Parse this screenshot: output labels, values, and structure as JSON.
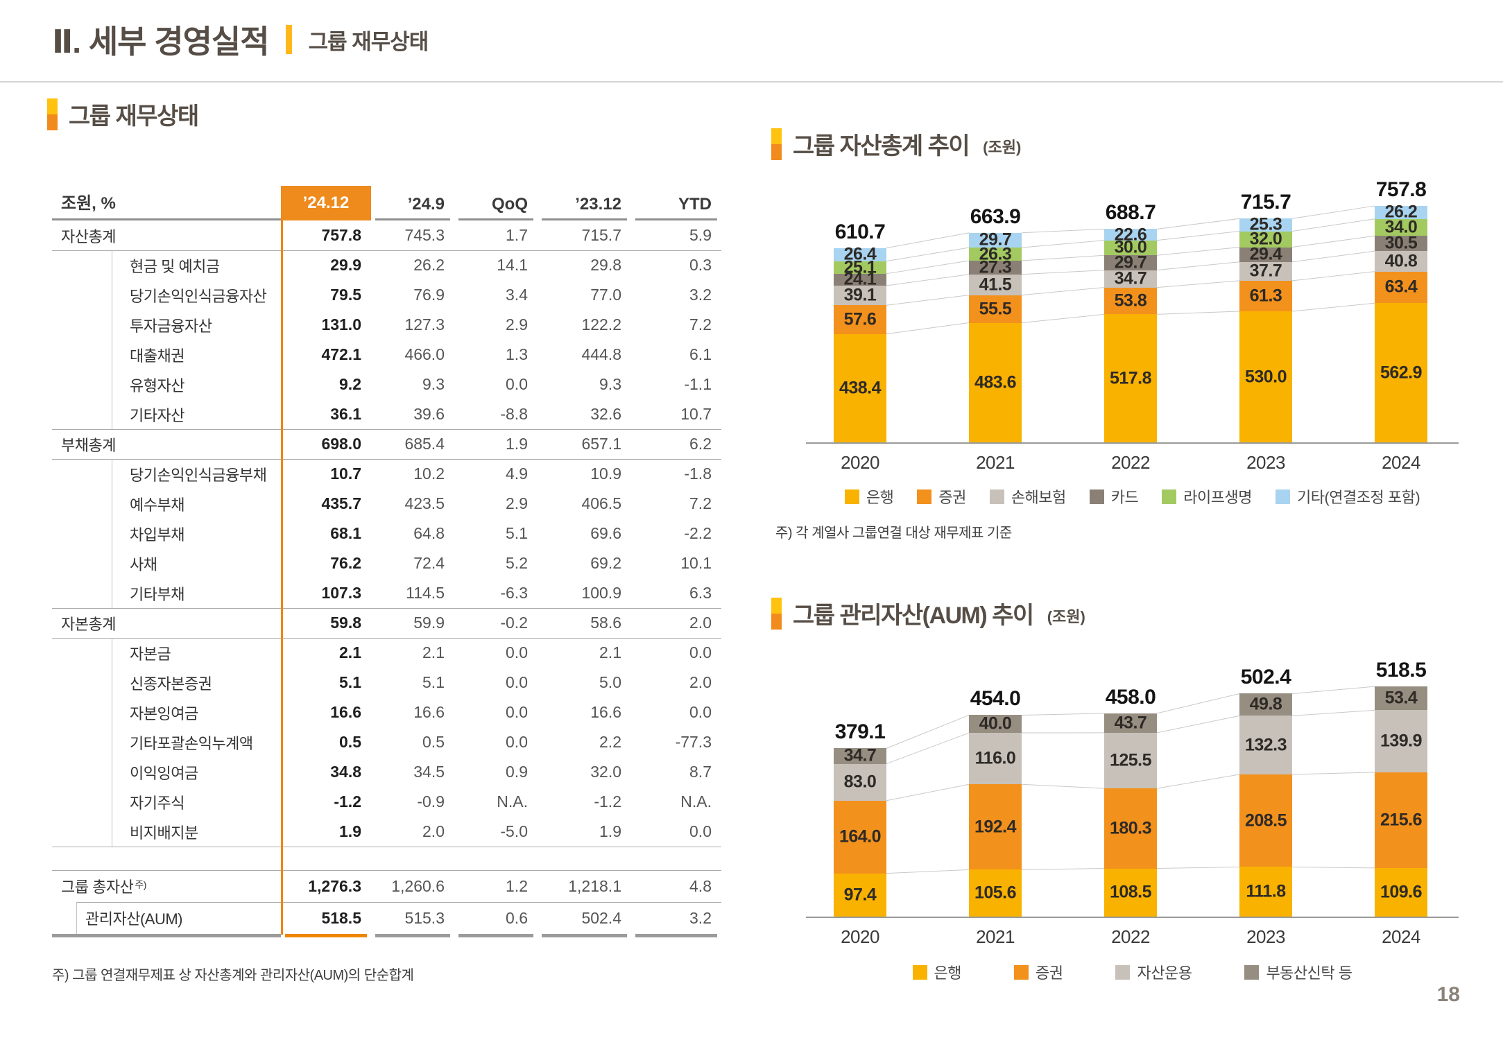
{
  "header": {
    "title": "Ⅱ. 세부 경영실적",
    "subtitle": "그룹 재무상태"
  },
  "page_number": "18",
  "colors": {
    "accent_yellow": "#FFC20E",
    "accent_orange": "#F28B1D",
    "header_cell_orange": "#EF8A1D",
    "table_accent_line": "#EE8600",
    "bank_yellow": "#F9B200",
    "securities_orange": "#F3911D",
    "insurance_gray": "#C7C1BA",
    "card_gray": "#8A8076",
    "life_green": "#A3CA61",
    "etc_blue": "#A8D4F1",
    "trust_gray": "#978E82"
  },
  "table": {
    "section_title": "그룹 재무상태",
    "unit_label": "조원, %",
    "columns": [
      "’24.12",
      "’24.9",
      "QoQ",
      "’23.12",
      "YTD"
    ],
    "rows": [
      {
        "label": "자산총계",
        "type": "total",
        "line_above": "none",
        "values": [
          "757.8",
          "745.3",
          "1.7",
          "715.7",
          "5.9"
        ]
      },
      {
        "label": "현금 및 예치금",
        "type": "sub",
        "line_above": "full",
        "values": [
          "29.9",
          "26.2",
          "14.1",
          "29.8",
          "0.3"
        ]
      },
      {
        "label": "당기손익인식금융자산",
        "type": "sub",
        "line_above": "none",
        "values": [
          "79.5",
          "76.9",
          "3.4",
          "77.0",
          "3.2"
        ]
      },
      {
        "label": "투자금융자산",
        "type": "sub",
        "line_above": "none",
        "values": [
          "131.0",
          "127.3",
          "2.9",
          "122.2",
          "7.2"
        ]
      },
      {
        "label": "대출채권",
        "type": "sub",
        "line_above": "none",
        "values": [
          "472.1",
          "466.0",
          "1.3",
          "444.8",
          "6.1"
        ]
      },
      {
        "label": "유형자산",
        "type": "sub",
        "line_above": "none",
        "values": [
          "9.2",
          "9.3",
          "0.0",
          "9.3",
          "-1.1"
        ]
      },
      {
        "label": "기타자산",
        "type": "sub",
        "line_above": "none",
        "values": [
          "36.1",
          "39.6",
          "-8.8",
          "32.6",
          "10.7"
        ]
      },
      {
        "label": "부채총계",
        "type": "total",
        "line_above": "full",
        "values": [
          "698.0",
          "685.4",
          "1.9",
          "657.1",
          "6.2"
        ]
      },
      {
        "label": "당기손익인식금융부채",
        "type": "sub",
        "line_above": "full",
        "values": [
          "10.7",
          "10.2",
          "4.9",
          "10.9",
          "-1.8"
        ]
      },
      {
        "label": "예수부채",
        "type": "sub",
        "line_above": "none",
        "values": [
          "435.7",
          "423.5",
          "2.9",
          "406.5",
          "7.2"
        ]
      },
      {
        "label": "차입부채",
        "type": "sub",
        "line_above": "none",
        "values": [
          "68.1",
          "64.8",
          "5.1",
          "69.6",
          "-2.2"
        ]
      },
      {
        "label": "사채",
        "type": "sub",
        "line_above": "none",
        "values": [
          "76.2",
          "72.4",
          "5.2",
          "69.2",
          "10.1"
        ]
      },
      {
        "label": "기타부채",
        "type": "sub",
        "line_above": "none",
        "values": [
          "107.3",
          "114.5",
          "-6.3",
          "100.9",
          "6.3"
        ]
      },
      {
        "label": "자본총계",
        "type": "total",
        "line_above": "full",
        "values": [
          "59.8",
          "59.9",
          "-0.2",
          "58.6",
          "2.0"
        ]
      },
      {
        "label": "자본금",
        "type": "sub",
        "line_above": "full",
        "values": [
          "2.1",
          "2.1",
          "0.0",
          "2.1",
          "0.0"
        ]
      },
      {
        "label": "신종자본증권",
        "type": "sub",
        "line_above": "none",
        "values": [
          "5.1",
          "5.1",
          "0.0",
          "5.0",
          "2.0"
        ]
      },
      {
        "label": "자본잉여금",
        "type": "sub",
        "line_above": "none",
        "values": [
          "16.6",
          "16.6",
          "0.0",
          "16.6",
          "0.0"
        ]
      },
      {
        "label": "기타포괄손익누계액",
        "type": "sub",
        "line_above": "none",
        "values": [
          "0.5",
          "0.5",
          "0.0",
          "2.2",
          "-77.3"
        ]
      },
      {
        "label": "이익잉여금",
        "type": "sub",
        "line_above": "none",
        "values": [
          "34.8",
          "34.5",
          "0.9",
          "32.0",
          "8.7"
        ]
      },
      {
        "label": "자기주식",
        "type": "sub",
        "line_above": "none",
        "values": [
          "-1.2",
          "-0.9",
          "N.A.",
          "-1.2",
          "N.A."
        ]
      },
      {
        "label": "비지배지분",
        "type": "sub",
        "line_above": "none",
        "values": [
          "1.9",
          "2.0",
          "-5.0",
          "1.9",
          "0.0"
        ]
      },
      {
        "label": "",
        "type": "gap",
        "line_above": "full",
        "values": []
      },
      {
        "label": "그룹 총자산",
        "sup": "주)",
        "type": "grand",
        "line_above": "full",
        "values": [
          "1,276.3",
          "1,260.6",
          "1.2",
          "1,218.1",
          "4.8"
        ]
      },
      {
        "label": "관리자산(AUM)",
        "type": "grand-sub",
        "line_above": "indent",
        "values": [
          "518.5",
          "515.3",
          "0.6",
          "502.4",
          "3.2"
        ]
      }
    ],
    "footnote": "주) 그룹 연결재무제표 상 자산총계와 관리자산(AUM)의 단순합계"
  },
  "chart_data": [
    {
      "type": "bar",
      "stacked": true,
      "title": "그룹 자산총계 추이",
      "unit": "(조원)",
      "categories": [
        "2020",
        "2021",
        "2022",
        "2023",
        "2024"
      ],
      "series": [
        {
          "name": "은행",
          "color": "#F9B200",
          "values": [
            438.4,
            483.6,
            517.8,
            530.0,
            562.9
          ]
        },
        {
          "name": "증권",
          "color": "#F3911D",
          "values": [
            57.6,
            55.5,
            53.8,
            61.3,
            63.4
          ]
        },
        {
          "name": "손해보험",
          "color": "#C7C1BA",
          "values": [
            39.1,
            41.5,
            34.7,
            37.7,
            40.8
          ]
        },
        {
          "name": "카드",
          "color": "#8A8076",
          "values": [
            24.1,
            27.3,
            29.7,
            29.4,
            30.5
          ]
        },
        {
          "name": "라이프생명",
          "color": "#A3CA61",
          "values": [
            25.1,
            26.3,
            30.0,
            32.0,
            34.0
          ]
        },
        {
          "name": "기타(연결조정 포함)",
          "color": "#A8D4F1",
          "values": [
            26.4,
            29.7,
            22.6,
            25.3,
            26.2
          ]
        }
      ],
      "totals": [
        610.7,
        663.9,
        688.7,
        715.7,
        757.8
      ],
      "legend_position": "bottom",
      "grid": false,
      "note": "주) 각 계열사 그룹연결 대상 재무제표 기준"
    },
    {
      "type": "bar",
      "stacked": true,
      "title": "그룹 관리자산(AUM) 추이",
      "unit": "(조원)",
      "categories": [
        "2020",
        "2021",
        "2022",
        "2023",
        "2024"
      ],
      "series": [
        {
          "name": "은행",
          "color": "#F9B200",
          "values": [
            97.4,
            105.6,
            108.5,
            111.8,
            109.6
          ]
        },
        {
          "name": "증권",
          "color": "#F3911D",
          "values": [
            164.0,
            192.4,
            180.3,
            208.5,
            215.6
          ]
        },
        {
          "name": "자산운용",
          "color": "#C7C1BA",
          "values": [
            83.0,
            116.0,
            125.5,
            132.3,
            139.9
          ]
        },
        {
          "name": "부동산신탁 등",
          "color": "#978E82",
          "values": [
            34.7,
            40.0,
            43.7,
            49.8,
            53.4
          ]
        }
      ],
      "totals": [
        379.1,
        454.0,
        458.0,
        502.4,
        518.5
      ],
      "legend_position": "bottom",
      "grid": false
    }
  ]
}
